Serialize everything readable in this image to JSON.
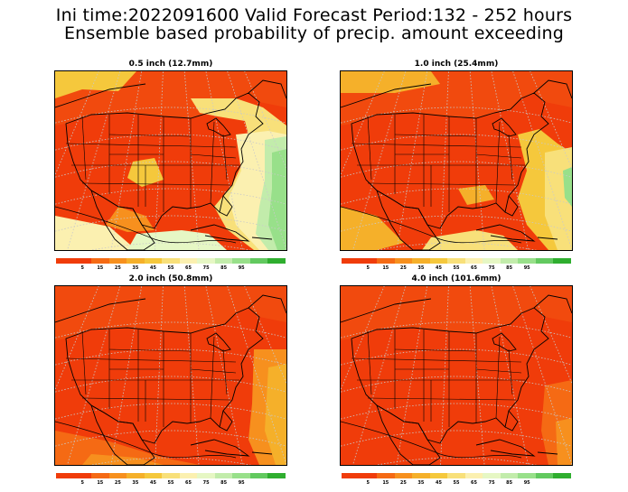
{
  "header": {
    "line1": "Ini time:2022091600  Valid Forecast Period:132 - 252 hours",
    "line2": "Ensemble based probability of precip. amount exceeding"
  },
  "panels": [
    {
      "title": "0.5 inch (12.7mm)",
      "wet": "high"
    },
    {
      "title": "1.0 inch (25.4mm)",
      "wet": "mid"
    },
    {
      "title": "2.0 inch (50.8mm)",
      "wet": "low"
    },
    {
      "title": "4.0 inch (101.6mm)",
      "wet": "none"
    }
  ],
  "colorbar": {
    "colors": [
      "#f03c0a",
      "#f03c0a",
      "#f56a14",
      "#f7901e",
      "#f5b02a",
      "#f5c83c",
      "#f8e07a",
      "#fbf0b0",
      "#e6f7c4",
      "#c2ecab",
      "#98e08a",
      "#62c95f",
      "#2fae2f"
    ],
    "labels": [
      "5",
      "15",
      "25",
      "35",
      "45",
      "55",
      "65",
      "75",
      "85",
      "95"
    ]
  }
}
